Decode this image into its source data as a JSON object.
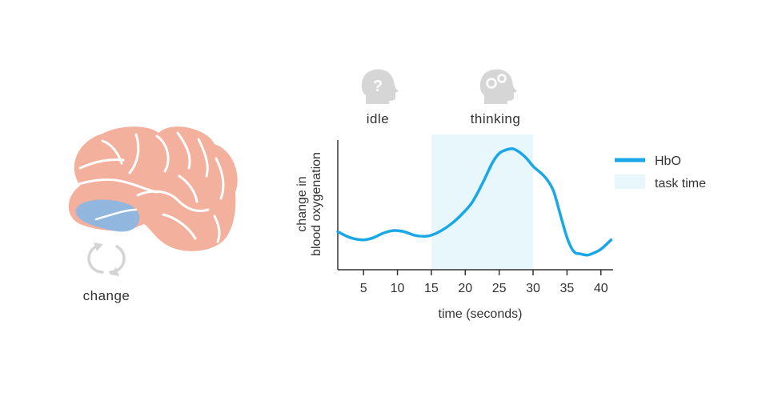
{
  "brain": {
    "caption": "change",
    "colors": {
      "brain": "#f3b09d",
      "region": "#7fb8ea",
      "cycle": "#d4d4d4"
    }
  },
  "states": [
    {
      "label": "idle",
      "icon": "head-question-icon"
    },
    {
      "label": "thinking",
      "icon": "head-gears-icon"
    }
  ],
  "chart_data": {
    "type": "line",
    "xlabel": "time (seconds)",
    "ylabel_lines": [
      "change in",
      "blood oxygenation"
    ],
    "xlim": [
      1.2,
      41.8
    ],
    "ylim": [
      0,
      1
    ],
    "xticks": [
      5,
      10,
      15,
      20,
      25,
      30,
      35,
      40
    ],
    "y_ticks_shown": false,
    "grid": false,
    "legend_position": "right",
    "task_time": {
      "x0": 15,
      "x1": 30,
      "label": "task time",
      "color": "#e8f7fc"
    },
    "series": [
      {
        "name": "HbO",
        "color": "#1aa7e8",
        "x": [
          1.2,
          3,
          5,
          6.5,
          8,
          9.5,
          11,
          12.5,
          14,
          15,
          16.5,
          18,
          19.5,
          21,
          22.5,
          24,
          25,
          26,
          27,
          28,
          29,
          30,
          31,
          32,
          33,
          34,
          35,
          36,
          37,
          38,
          39,
          40,
          41.5
        ],
        "y": [
          0.25,
          0.2,
          0.18,
          0.2,
          0.24,
          0.26,
          0.25,
          0.22,
          0.21,
          0.22,
          0.26,
          0.32,
          0.4,
          0.5,
          0.66,
          0.84,
          0.92,
          0.95,
          0.96,
          0.93,
          0.88,
          0.81,
          0.76,
          0.7,
          0.6,
          0.4,
          0.2,
          0.08,
          0.06,
          0.05,
          0.07,
          0.1,
          0.18
        ]
      }
    ]
  }
}
